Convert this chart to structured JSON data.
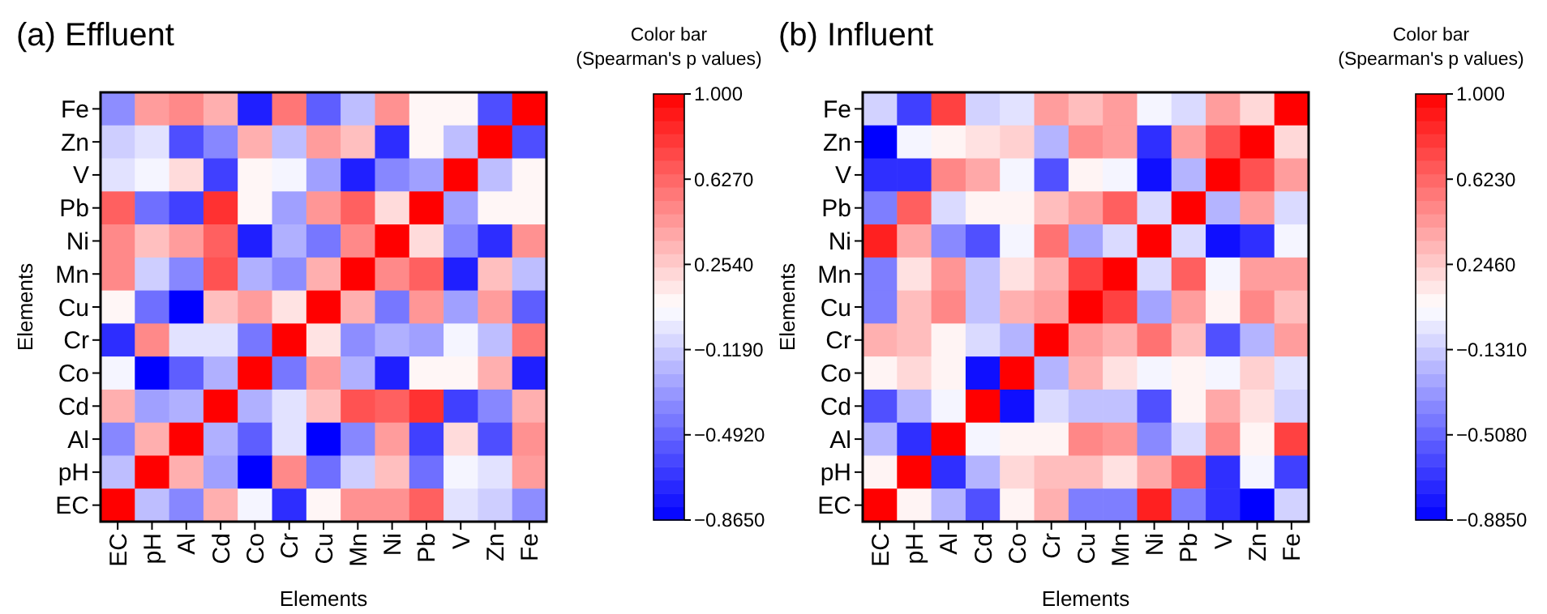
{
  "chart_data": [
    {
      "type": "heatmap",
      "title": "(a) Effluent",
      "xlabel": "Elements",
      "ylabel": "Elements",
      "clabel": "Color bar (Spearman's p values)",
      "categories": [
        "EC",
        "pH",
        "Al",
        "Cd",
        "Co",
        "Cr",
        "Cu",
        "Mn",
        "Ni",
        "Pb",
        "V",
        "Zn",
        "Fe"
      ],
      "y_categories": [
        "Fe",
        "Zn",
        "V",
        "Pb",
        "Ni",
        "Mn",
        "Cu",
        "Cr",
        "Co",
        "Cd",
        "Al",
        "pH",
        "EC"
      ],
      "cells": [
        [
          -0.35,
          0.43,
          0.5,
          0.36,
          -0.75,
          0.57,
          -0.52,
          -0.17,
          0.47,
          0.1,
          0.1,
          -0.58,
          1
        ],
        [
          -0.11,
          -0.04,
          -0.58,
          -0.37,
          0.36,
          -0.17,
          0.43,
          0.3,
          -0.7,
          0.1,
          -0.17,
          1,
          -0.58
        ],
        [
          -0.04,
          0.03,
          0.2,
          -0.63,
          0.1,
          0.03,
          -0.28,
          -0.75,
          -0.37,
          -0.28,
          1,
          -0.17,
          0.1
        ],
        [
          0.65,
          -0.46,
          -0.63,
          0.82,
          0.1,
          -0.28,
          0.45,
          0.65,
          0.2,
          1,
          -0.28,
          0.1,
          0.1
        ],
        [
          0.5,
          0.3,
          0.43,
          0.65,
          -0.75,
          -0.22,
          -0.43,
          0.5,
          1,
          0.2,
          -0.37,
          -0.7,
          0.47
        ],
        [
          0.5,
          -0.11,
          -0.37,
          0.7,
          -0.22,
          -0.35,
          0.36,
          1,
          0.5,
          0.65,
          -0.75,
          0.3,
          -0.17
        ],
        [
          0.1,
          -0.46,
          -0.865,
          0.3,
          0.43,
          0.17,
          1,
          0.36,
          -0.43,
          0.45,
          -0.28,
          0.43,
          -0.52
        ],
        [
          -0.7,
          0.5,
          -0.04,
          -0.04,
          -0.43,
          1,
          0.17,
          -0.35,
          -0.22,
          -0.28,
          0.03,
          -0.17,
          0.57
        ],
        [
          0.03,
          -0.865,
          -0.52,
          -0.22,
          1,
          -0.43,
          0.43,
          -0.22,
          -0.75,
          0.1,
          0.1,
          0.36,
          -0.75
        ],
        [
          0.36,
          -0.28,
          -0.22,
          1,
          -0.22,
          -0.04,
          0.3,
          0.7,
          0.65,
          0.82,
          -0.63,
          -0.37,
          0.36
        ],
        [
          -0.37,
          0.36,
          1,
          -0.22,
          -0.52,
          -0.04,
          -0.865,
          -0.37,
          0.43,
          -0.63,
          0.2,
          -0.58,
          0.47
        ],
        [
          -0.17,
          1,
          0.36,
          -0.28,
          -0.865,
          0.5,
          -0.46,
          -0.11,
          0.3,
          -0.46,
          0.03,
          -0.04,
          0.43
        ],
        [
          1,
          -0.17,
          -0.37,
          0.36,
          0.03,
          -0.7,
          0.1,
          0.47,
          0.47,
          0.65,
          -0.04,
          -0.11,
          -0.35
        ]
      ],
      "clim": [
        -0.865,
        1
      ],
      "cticks": [
        {
          "value": 1,
          "label": "1.000"
        },
        {
          "value": 0.627,
          "label": "0.6270"
        },
        {
          "value": 0.254,
          "label": "0.2540"
        },
        {
          "value": -0.119,
          "label": "−0.1190"
        },
        {
          "value": -0.492,
          "label": "−0.4920"
        },
        {
          "value": -0.865,
          "label": "−0.8650"
        }
      ]
    },
    {
      "type": "heatmap",
      "title": "(b) Influent",
      "xlabel": "Elements",
      "ylabel": "Elements",
      "clabel": "Color bar (Spearman's p values)",
      "categories": [
        "EC",
        "pH",
        "Al",
        "Cd",
        "Co",
        "Cr",
        "Cu",
        "Mn",
        "Ni",
        "Pb",
        "V",
        "Zn",
        "Fe"
      ],
      "y_categories": [
        "Fe",
        "Zn",
        "V",
        "Pb",
        "Ni",
        "Mn",
        "Cu",
        "Cr",
        "Co",
        "Cd",
        "Al",
        "pH",
        "EC"
      ],
      "cells": [
        [
          -0.11,
          -0.65,
          0.76,
          -0.11,
          -0.05,
          0.42,
          0.3,
          0.42,
          0.02,
          -0.08,
          0.42,
          0.2,
          1
        ],
        [
          -0.885,
          0.02,
          0.1,
          0.17,
          0.23,
          -0.22,
          0.48,
          0.42,
          -0.71,
          0.42,
          0.7,
          1,
          0.2
        ],
        [
          -0.71,
          -0.71,
          0.5,
          0.38,
          0.02,
          -0.59,
          0.1,
          0.02,
          -0.83,
          -0.22,
          1,
          0.7,
          0.42
        ],
        [
          -0.42,
          0.65,
          -0.08,
          0.1,
          0.1,
          0.3,
          0.42,
          0.65,
          -0.08,
          1,
          -0.22,
          0.42,
          -0.08
        ],
        [
          0.88,
          0.38,
          -0.38,
          -0.59,
          0.02,
          0.58,
          -0.28,
          -0.08,
          1,
          -0.08,
          -0.83,
          -0.71,
          0.02
        ],
        [
          -0.42,
          0.17,
          0.45,
          -0.17,
          0.17,
          0.35,
          0.76,
          1,
          -0.08,
          0.65,
          0.02,
          0.42,
          0.42
        ],
        [
          -0.42,
          0.3,
          0.5,
          -0.17,
          0.35,
          0.42,
          1,
          0.76,
          -0.28,
          0.42,
          0.1,
          0.5,
          0.3
        ],
        [
          0.35,
          0.3,
          0.1,
          -0.08,
          -0.22,
          1,
          0.42,
          0.35,
          0.58,
          0.3,
          -0.59,
          -0.22,
          0.42
        ],
        [
          0.1,
          0.2,
          0.1,
          -0.83,
          1,
          -0.22,
          0.35,
          0.17,
          0.02,
          0.1,
          0.02,
          0.23,
          -0.05
        ],
        [
          -0.59,
          -0.22,
          0.02,
          1,
          -0.83,
          -0.08,
          -0.17,
          -0.17,
          -0.59,
          0.1,
          0.38,
          0.17,
          -0.11
        ],
        [
          -0.22,
          -0.71,
          1,
          0.02,
          0.1,
          0.1,
          0.5,
          0.45,
          -0.38,
          -0.08,
          0.5,
          0.1,
          0.76
        ],
        [
          0.1,
          1,
          -0.71,
          -0.22,
          0.2,
          0.3,
          0.3,
          0.17,
          0.38,
          0.65,
          -0.71,
          0.02,
          -0.65
        ],
        [
          1,
          0.1,
          -0.22,
          -0.59,
          0.1,
          0.35,
          -0.42,
          -0.42,
          0.88,
          -0.42,
          -0.71,
          -0.885,
          -0.11
        ]
      ],
      "clim": [
        -0.885,
        1
      ],
      "cticks": [
        {
          "value": 1,
          "label": "1.000"
        },
        {
          "value": 0.623,
          "label": "0.6230"
        },
        {
          "value": 0.246,
          "label": "0.2460"
        },
        {
          "value": -0.131,
          "label": "−0.1310"
        },
        {
          "value": -0.508,
          "label": "−0.5080"
        },
        {
          "value": -0.885,
          "label": "−0.8850"
        }
      ]
    }
  ]
}
